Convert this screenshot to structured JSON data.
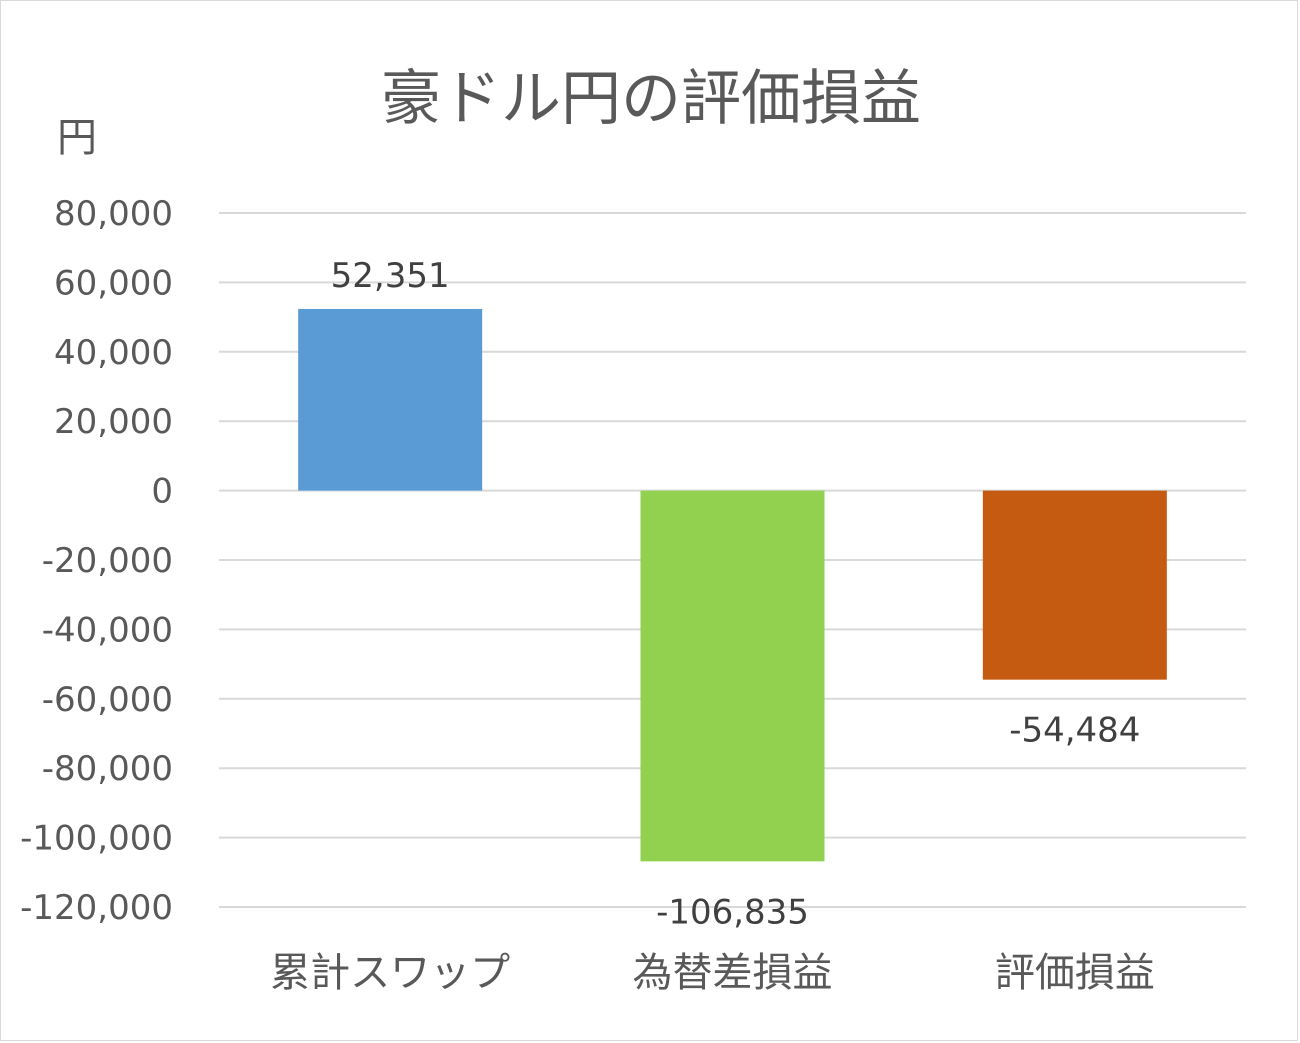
{
  "chart_data": {
    "type": "bar",
    "title": "豪ドル円の評価損益",
    "ylabel": "円",
    "xlabel": "",
    "categories": [
      "累計スワップ",
      "為替差損益",
      "評価損益"
    ],
    "values": [
      52351,
      -106835,
      -54484
    ],
    "data_labels": [
      "52,351",
      "-106,835",
      "-54,484"
    ],
    "colors": [
      "#5b9bd5",
      "#92d050",
      "#c55a11"
    ],
    "ylim": [
      -120000,
      80000
    ],
    "yticks": [
      80000,
      60000,
      40000,
      20000,
      0,
      -20000,
      -40000,
      -60000,
      -80000,
      -100000,
      -120000
    ],
    "ytick_labels": [
      "80,000",
      "60,000",
      "40,000",
      "20,000",
      "0",
      "-20,000",
      "-40,000",
      "-60,000",
      "-80,000",
      "-100,000",
      "-120,000"
    ],
    "grid": true,
    "legend": "none"
  }
}
